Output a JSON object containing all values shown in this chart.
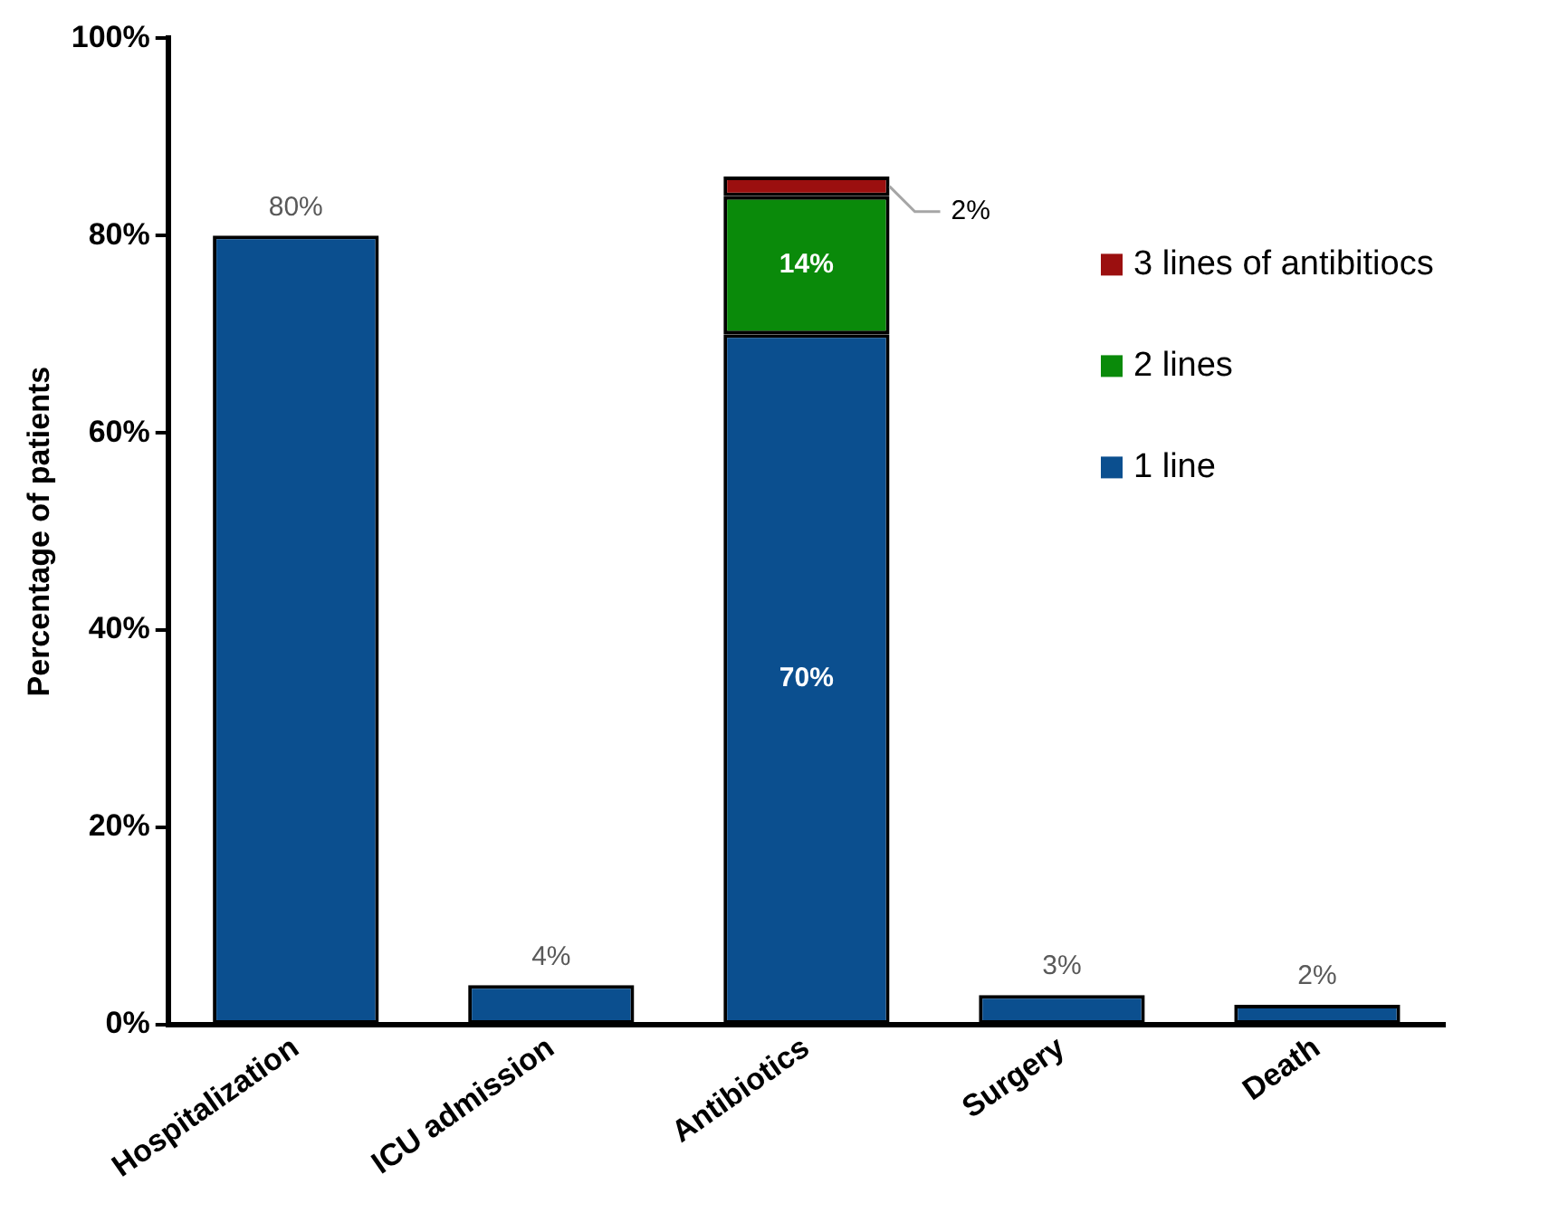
{
  "chart_data": {
    "type": "bar",
    "ylabel": "Percentage of patients",
    "stacked": true,
    "legend": "right",
    "grid": false,
    "categories": [
      "Hospitalization",
      "ICU admission",
      "Antibiotics",
      "Surgery",
      "Death"
    ],
    "ylim": [
      0,
      100
    ],
    "yticks": [
      {
        "value": 0,
        "label": "0%"
      },
      {
        "value": 20,
        "label": "20%"
      },
      {
        "value": 40,
        "label": "40%"
      },
      {
        "value": 60,
        "label": "60%"
      },
      {
        "value": 80,
        "label": "80%"
      },
      {
        "value": 100,
        "label": "100%"
      }
    ],
    "series": [
      {
        "name": "1 line",
        "color": "#0b4f8f",
        "values": [
          80,
          4,
          70,
          3,
          2
        ],
        "value_labels": [
          "80%",
          "4%",
          "70%",
          "3%",
          "2%"
        ]
      },
      {
        "name": "2 lines",
        "color": "#0a8a0a",
        "values": [
          null,
          null,
          14,
          null,
          null
        ],
        "value_labels": [
          null,
          null,
          "14%",
          null,
          null
        ]
      },
      {
        "name": "3 lines of antibitiocs",
        "color": "#9b0f0f",
        "values": [
          null,
          null,
          2,
          null,
          null
        ],
        "value_labels": [
          null,
          null,
          "2%",
          null,
          null
        ]
      }
    ]
  }
}
